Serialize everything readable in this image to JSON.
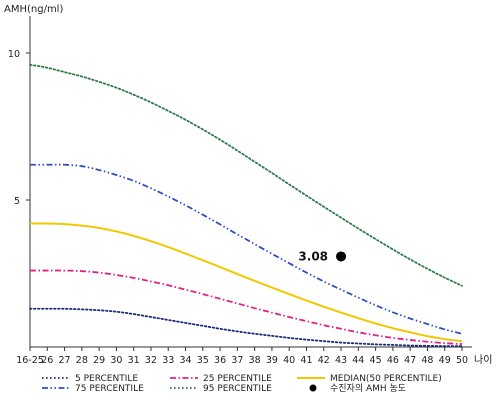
{
  "chart_data": {
    "type": "line",
    "ylabel": "AMH(ng/ml)",
    "xlabel": "나이",
    "x": [
      "16-25",
      "26",
      "27",
      "28",
      "29",
      "30",
      "31",
      "32",
      "33",
      "34",
      "35",
      "36",
      "37",
      "38",
      "39",
      "40",
      "41",
      "42",
      "43",
      "44",
      "45",
      "46",
      "47",
      "48",
      "49",
      "50"
    ],
    "ylim": [
      0,
      11.5
    ],
    "yticks": [
      5,
      10
    ],
    "grid": false,
    "legend_position": "bottom",
    "series": [
      {
        "name": "5 PERCENTILE",
        "color": "#1a2a7a",
        "style": "dotted",
        "values": [
          1.3,
          1.3,
          1.3,
          1.28,
          1.25,
          1.2,
          1.12,
          1.02,
          0.92,
          0.82,
          0.72,
          0.62,
          0.53,
          0.45,
          0.38,
          0.31,
          0.25,
          0.2,
          0.15,
          0.12,
          0.09,
          0.07,
          0.05,
          0.04,
          0.03,
          0.03
        ]
      },
      {
        "name": "25 PERCENTILE",
        "color": "#e0208a",
        "style": "dashdot",
        "values": [
          2.6,
          2.6,
          2.6,
          2.58,
          2.53,
          2.45,
          2.35,
          2.23,
          2.1,
          1.95,
          1.8,
          1.64,
          1.48,
          1.32,
          1.17,
          1.02,
          0.88,
          0.74,
          0.62,
          0.5,
          0.4,
          0.31,
          0.24,
          0.18,
          0.13,
          0.1
        ]
      },
      {
        "name": "MEDIAN(50 PERCENTILE)",
        "color": "#f0c800",
        "style": "solid",
        "values": [
          4.2,
          4.2,
          4.18,
          4.13,
          4.05,
          3.93,
          3.78,
          3.6,
          3.4,
          3.18,
          2.95,
          2.72,
          2.48,
          2.25,
          2.02,
          1.8,
          1.58,
          1.37,
          1.17,
          0.98,
          0.8,
          0.64,
          0.5,
          0.37,
          0.27,
          0.2
        ]
      },
      {
        "name": "75 PERCENTILE",
        "color": "#2f4fc7",
        "style": "dashdotdot",
        "values": [
          6.2,
          6.2,
          6.2,
          6.15,
          6.02,
          5.85,
          5.65,
          5.4,
          5.12,
          4.82,
          4.5,
          4.17,
          3.83,
          3.5,
          3.17,
          2.85,
          2.53,
          2.23,
          1.95,
          1.68,
          1.42,
          1.18,
          0.97,
          0.78,
          0.6,
          0.45
        ]
      },
      {
        "name": "95 PERCENTILE",
        "color": "#2e7a4a",
        "style": "dotted",
        "values": [
          9.6,
          9.5,
          9.35,
          9.2,
          9.02,
          8.82,
          8.58,
          8.32,
          8.03,
          7.73,
          7.4,
          7.05,
          6.68,
          6.3,
          5.92,
          5.53,
          5.15,
          4.77,
          4.4,
          4.03,
          3.67,
          3.32,
          2.98,
          2.66,
          2.36,
          2.08
        ]
      }
    ],
    "marker": {
      "label": "수진자의 AMH 농도",
      "x": "43",
      "y": 3.08,
      "value_label": "3.08",
      "color": "#000000"
    }
  }
}
